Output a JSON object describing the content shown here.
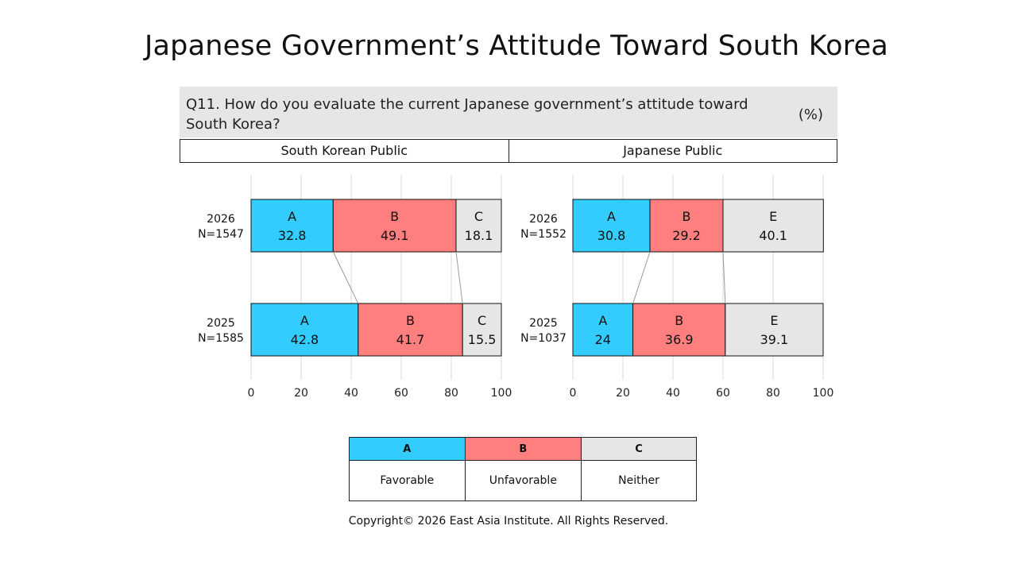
{
  "title": "Japanese Government’s Attitude Toward South Korea",
  "question": {
    "text": "Q11. How do you evaluate the current Japanese government’s attitude toward South Korea?",
    "unit": "(%)"
  },
  "panel_headers": [
    "South Korean Public",
    "Japanese Public"
  ],
  "legend": [
    {
      "key": "A",
      "label": "Favorable",
      "color": "#33ccff"
    },
    {
      "key": "B",
      "label": "Unfavorable",
      "color": "#ff7f7f"
    },
    {
      "key": "C",
      "label": "Neither",
      "color": "#e6e6e6"
    }
  ],
  "copyright": "Copyright© 2026 East Asia Institute. All Rights Reserved.",
  "chart_data": [
    {
      "type": "bar",
      "orientation": "horizontal-stacked",
      "title": "South Korean Public",
      "xlim": [
        0,
        100
      ],
      "xticks": [
        0,
        20,
        40,
        60,
        80,
        100
      ],
      "rows": [
        {
          "year": "2026",
          "n": "N=1547",
          "segments": [
            {
              "key": "A",
              "value": 32.8,
              "label": "32.8"
            },
            {
              "key": "B",
              "value": 49.1,
              "label": "49.1"
            },
            {
              "key": "C",
              "value": 18.1,
              "label": "18.1"
            }
          ]
        },
        {
          "year": "2025",
          "n": "N=1585",
          "segments": [
            {
              "key": "A",
              "value": 42.8,
              "label": "42.8"
            },
            {
              "key": "B",
              "value": 41.7,
              "label": "41.7"
            },
            {
              "key": "C",
              "value": 15.5,
              "label": "15.5"
            }
          ]
        }
      ],
      "colors": {
        "A": "#33ccff",
        "B": "#ff7f7f",
        "C": "#e6e6e6"
      }
    },
    {
      "type": "bar",
      "orientation": "horizontal-stacked",
      "title": "Japanese Public",
      "xlim": [
        0,
        100
      ],
      "xticks": [
        0,
        20,
        40,
        60,
        80,
        100
      ],
      "rows": [
        {
          "year": "2026",
          "n": "N=1552",
          "segments": [
            {
              "key": "A",
              "value": 30.8,
              "label": "30.8"
            },
            {
              "key": "B",
              "value": 29.2,
              "label": "29.2"
            },
            {
              "key": "E",
              "value": 40.1,
              "label": "40.1"
            }
          ]
        },
        {
          "year": "2025",
          "n": "N=1037",
          "segments": [
            {
              "key": "A",
              "value": 24,
              "label": "24"
            },
            {
              "key": "B",
              "value": 36.9,
              "label": "36.9"
            },
            {
              "key": "E",
              "value": 39.1,
              "label": "39.1"
            }
          ]
        }
      ],
      "colors": {
        "A": "#33ccff",
        "B": "#ff7f7f",
        "E": "#e6e6e6"
      }
    }
  ]
}
